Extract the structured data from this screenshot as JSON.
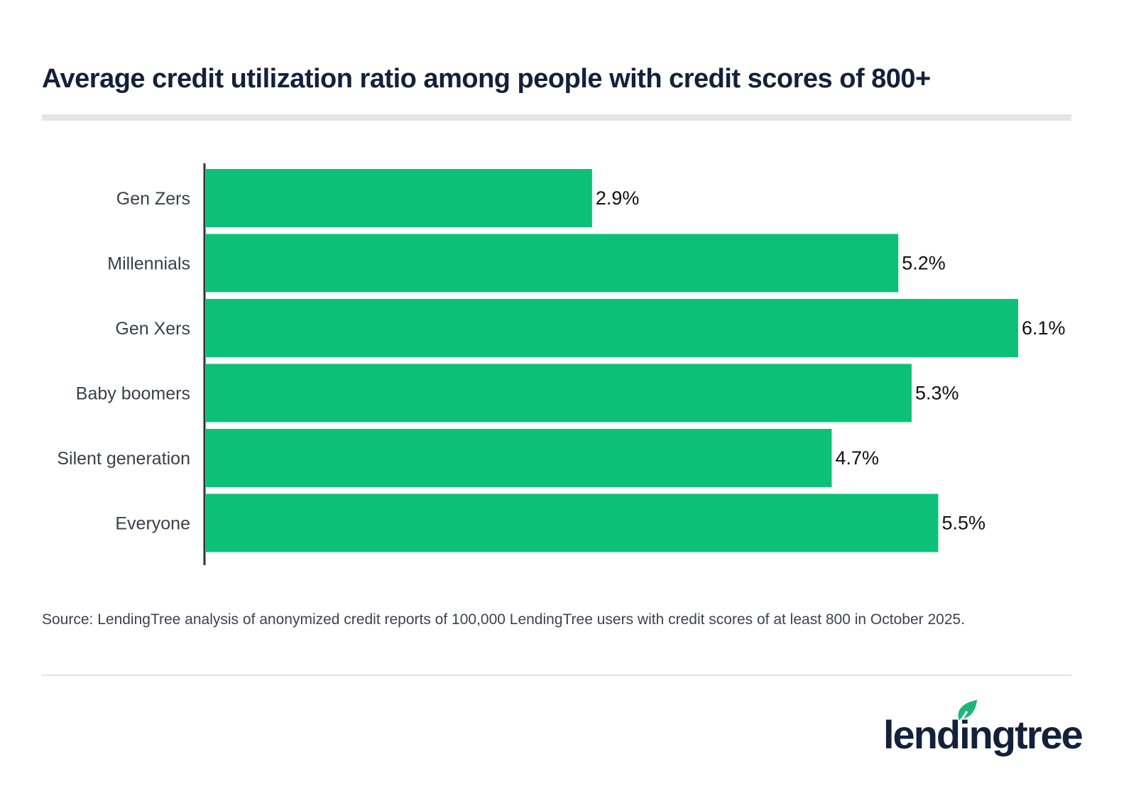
{
  "chart_data": {
    "type": "bar",
    "orientation": "horizontal",
    "title": "Average credit utilization ratio among people with credit scores of 800+",
    "categories": [
      "Gen Zers",
      "Millennials",
      "Gen Xers",
      "Baby boomers",
      "Silent generation",
      "Everyone"
    ],
    "values": [
      2.9,
      5.2,
      6.1,
      5.3,
      4.7,
      5.5
    ],
    "data_labels": [
      "2.9%",
      "5.2%",
      "6.1%",
      "5.3%",
      "4.7%",
      "5.5%"
    ],
    "xlim": [
      0,
      6.1
    ],
    "grid": false,
    "bar_color": "#0cc177"
  },
  "source": "Source: LendingTree analysis of anonymized credit reports of 100,000 LendingTree users with credit scores of at least 800 in October 2025.",
  "logo": {
    "text": "lendingtree",
    "leaf_color": "#1fb578"
  }
}
